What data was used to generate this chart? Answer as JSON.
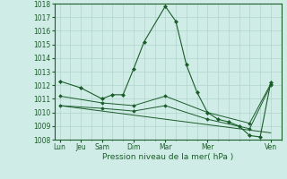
{
  "bg_color": "#d0ece6",
  "grid_color": "#b0d4cc",
  "line_color": "#1a5c2a",
  "marker_color": "#1a5c2a",
  "xlabel": "Pression niveau de la mer( hPa )",
  "xlabel_color": "#1a5c2a",
  "tick_color": "#1a5c2a",
  "ylim": [
    1008,
    1018
  ],
  "yticks": [
    1008,
    1009,
    1010,
    1011,
    1012,
    1013,
    1014,
    1015,
    1016,
    1017,
    1018
  ],
  "xtick_major_labels": [
    "Lun",
    "Jeu",
    "Sam",
    "Dim",
    "Mar",
    "Mer",
    "Ven"
  ],
  "xtick_major_positions": [
    0,
    2,
    4,
    7,
    10,
    14,
    20
  ],
  "xlim": [
    -0.5,
    21
  ],
  "series1_x": [
    0,
    2,
    4,
    5,
    6,
    7,
    8,
    10,
    11,
    12,
    13,
    14,
    15,
    16,
    17,
    18,
    19,
    20
  ],
  "series1_y": [
    1012.3,
    1011.8,
    1011.0,
    1011.3,
    1011.3,
    1013.2,
    1015.2,
    1017.8,
    1016.7,
    1013.5,
    1011.5,
    1010.0,
    1009.5,
    1009.3,
    1009.0,
    1008.3,
    1008.2,
    1012.2
  ],
  "series2_x": [
    0,
    4,
    7,
    10,
    14,
    18,
    20
  ],
  "series2_y": [
    1011.2,
    1010.7,
    1010.5,
    1011.2,
    1010.0,
    1009.2,
    1012.1
  ],
  "series3_x": [
    0,
    4,
    7,
    10,
    14,
    18,
    20
  ],
  "series3_y": [
    1010.5,
    1010.3,
    1010.1,
    1010.5,
    1009.5,
    1008.8,
    1012.0
  ],
  "series4_x": [
    0,
    20
  ],
  "series4_y": [
    1010.5,
    1008.5
  ]
}
